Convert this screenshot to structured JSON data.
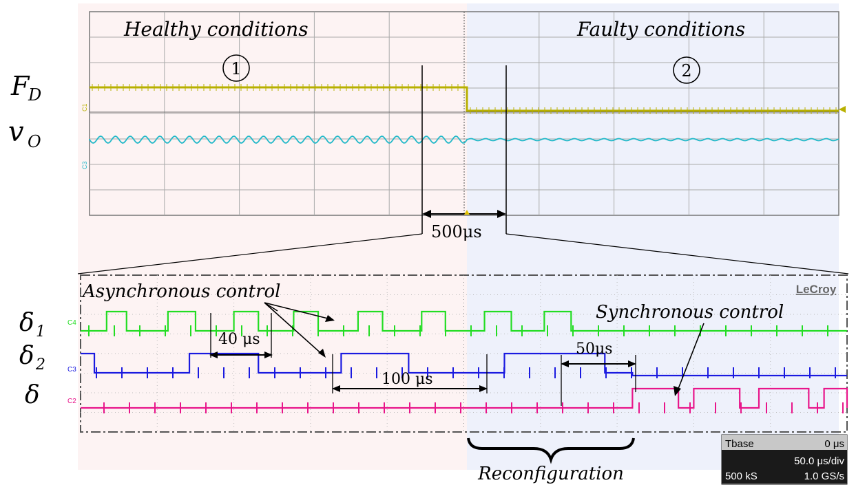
{
  "chart_data": [
    {
      "type": "line",
      "panel": "top-oscilloscope",
      "annotations": {
        "healthy": "Healthy conditions",
        "faulty": "Faulty conditions",
        "marker_1": "1",
        "marker_2": "2",
        "zoom_span": "500μs"
      },
      "series": [
        {
          "name": "F_D",
          "label_main": "F",
          "label_sub": "D",
          "color": "#b8b000",
          "shape": "step high then low at fault"
        },
        {
          "name": "v_O",
          "label_main": "v",
          "label_sub": "O",
          "color": "#22b8c8",
          "shape": "ripple, smaller after fault"
        }
      ],
      "channel_tags": [
        "C1",
        "C3"
      ],
      "colors": {
        "healthy_bg": "#fdf3f3",
        "faulty_bg": "#eef1fb",
        "grid": "#9a9a9a"
      }
    },
    {
      "type": "line",
      "panel": "bottom-zoom",
      "brand": "LeCroy",
      "annotations": {
        "async": "Asynchronous control",
        "sync": "Synchronous control",
        "t40": "40 μs",
        "t50": "50μs",
        "t100": "100 μs",
        "reconfig": "Reconfiguration"
      },
      "series": [
        {
          "name": "δ1",
          "label_main": "δ",
          "label_sub": "1",
          "tag": "C4",
          "color": "#22dd22",
          "pulses": [
            [
              0.34,
              0.6
            ],
            [
              1.14,
              1.5
            ],
            [
              2.0,
              2.32
            ],
            [
              2.78,
              3.1
            ],
            [
              3.62,
              3.94
            ],
            [
              4.45,
              4.76
            ],
            [
              5.27,
              5.62
            ],
            [
              6.05,
              6.4
            ]
          ]
        },
        {
          "name": "δ2",
          "label_main": "δ",
          "label_sub": "2",
          "tag": "C3",
          "color": "#1a1ae0",
          "pulses": [
            [
              0.0,
              0.18
            ],
            [
              1.42,
              2.32
            ],
            [
              3.4,
              4.28
            ],
            [
              5.53,
              6.84
            ]
          ],
          "sync_level_after": 7.2
        },
        {
          "name": "δ",
          "label_main": "δ",
          "label_sub": "",
          "tag": "C2",
          "color": "#e8158a",
          "pulses": [
            [
              7.2,
              7.8
            ],
            [
              8.0,
              8.6
            ],
            [
              8.85,
              9.5
            ],
            [
              9.7,
              10.0
            ]
          ]
        }
      ]
    }
  ],
  "scope_info": {
    "tbase_label": "Tbase",
    "tbase_value": "0 μs",
    "time_per_div": "50.0 μs/div",
    "samples": "500 kS",
    "rate": "1.0 GS/s"
  }
}
